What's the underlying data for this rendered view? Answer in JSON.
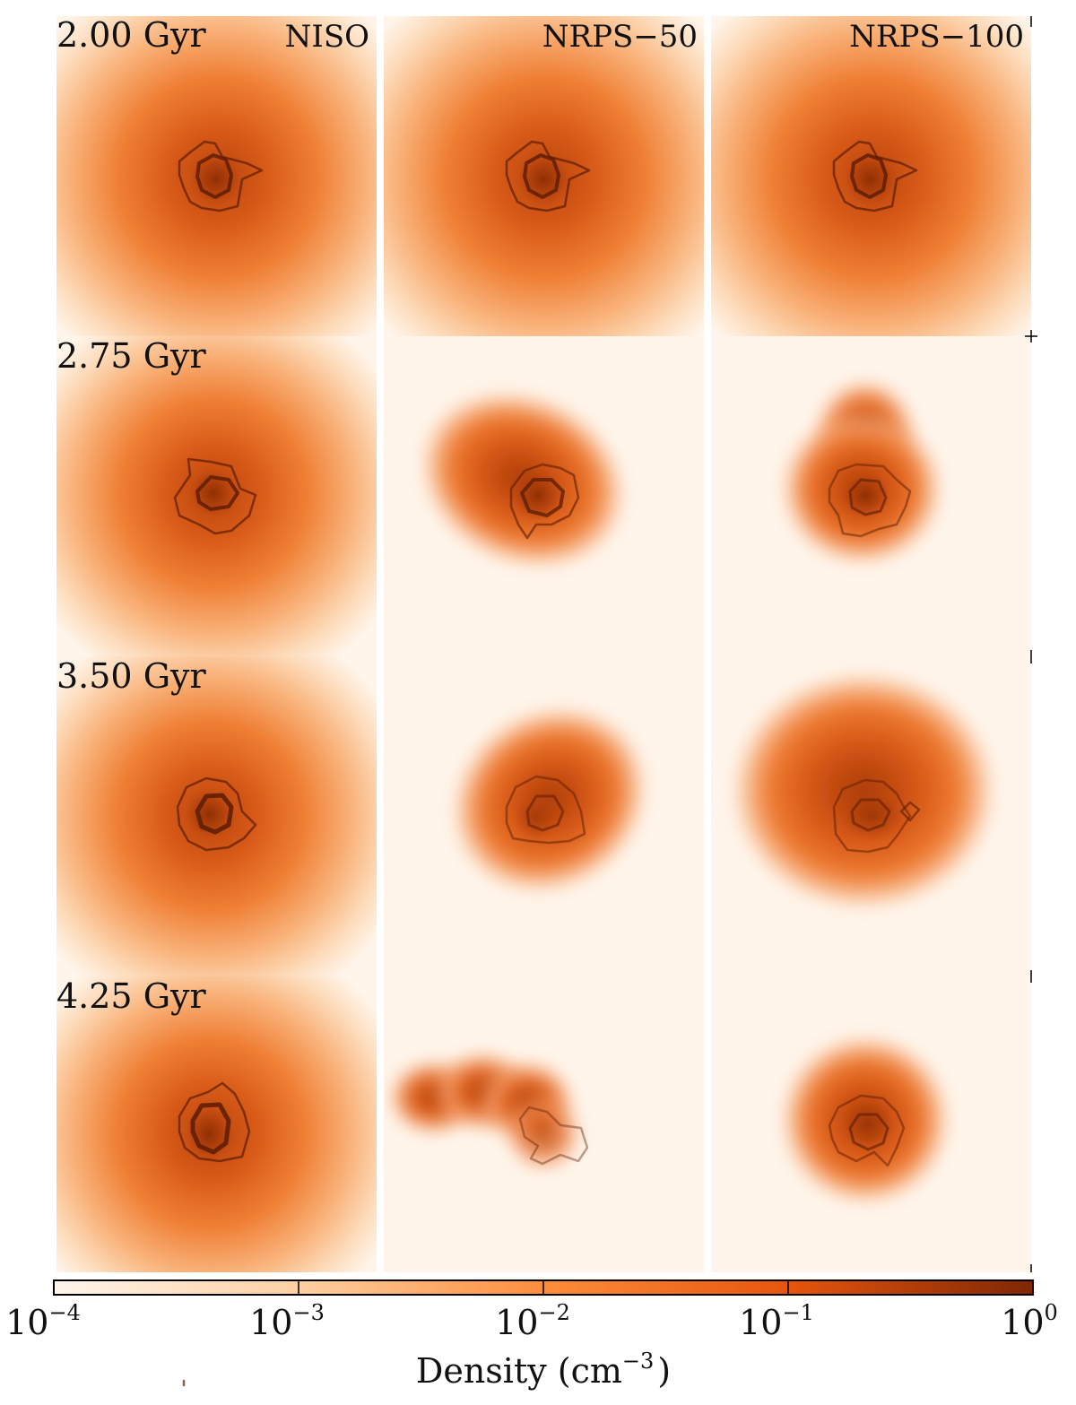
{
  "columns": [
    "NISO",
    "NRPS−50",
    "NRPS−100"
  ],
  "rows": [
    "2.00 Gyr",
    "2.75 Gyr",
    "3.50 Gyr",
    "4.25 Gyr"
  ],
  "colorbar": {
    "label_main": "Density (cm",
    "label_exp": "−3",
    "label_close": ")",
    "ticks": [
      {
        "base": "10",
        "exp": "−4"
      },
      {
        "base": "10",
        "exp": "−3"
      },
      {
        "base": "10",
        "exp": "−2"
      },
      {
        "base": "10",
        "exp": "−1"
      },
      {
        "base": "10",
        "exp": "0"
      }
    ],
    "colormap": "Oranges",
    "scale": "log",
    "range": [
      0.0001,
      1
    ],
    "colors": [
      "#fff5eb",
      "#fdd0a2",
      "#fd8d3c",
      "#e6550d",
      "#7f2704"
    ]
  }
}
